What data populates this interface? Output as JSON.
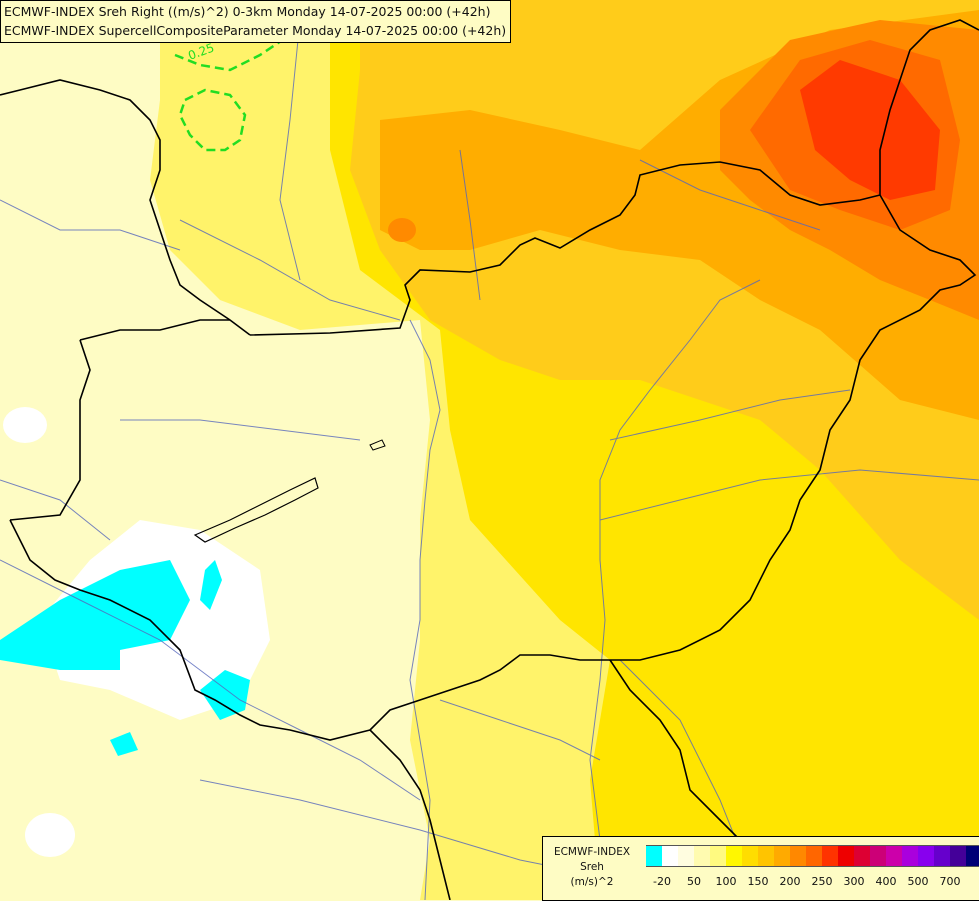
{
  "title": {
    "line1": "ECMWF-INDEX Sreh Right ((m/s)^2) 0-3km Monday 14-07-2025 00:00 (+42h)",
    "line2": "ECMWF-INDEX SupercellCompositeParameter Monday 14-07-2025 00:00 (+42h)"
  },
  "map": {
    "contour_label": "0.25",
    "contour_color": "#22dd22"
  },
  "legend": {
    "title1": "ECMWF-INDEX",
    "title2": "Sreh",
    "unit": "(m/s)^2",
    "colors": [
      "#00ffff",
      "#ffffff",
      "#fffde0",
      "#fffbb0",
      "#fffa80",
      "#fff700",
      "#ffdd00",
      "#ffc400",
      "#ffaa00",
      "#ff8800",
      "#ff6600",
      "#ff3300",
      "#ee0000",
      "#dd0033",
      "#cc0077",
      "#cc00aa",
      "#aa00dd",
      "#8800ee",
      "#6600cc",
      "#440099",
      "#000077"
    ],
    "ticks": [
      "-20",
      "50",
      "100",
      "150",
      "200",
      "250",
      "300",
      "400",
      "500",
      "700"
    ]
  }
}
